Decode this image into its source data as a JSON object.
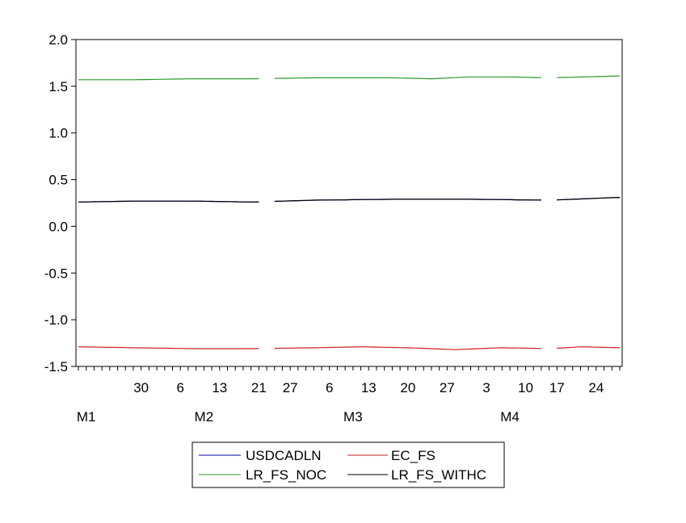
{
  "chart_data": {
    "type": "line",
    "title": "",
    "xlabel": "",
    "ylabel": "",
    "ylim": [
      -1.5,
      2.0
    ],
    "y_ticks": [
      "2.0",
      "1.5",
      "1.0",
      "0.5",
      "0.0",
      "-0.5",
      "-1.0",
      "-1.5"
    ],
    "y_tick_values": [
      2.0,
      1.5,
      1.0,
      0.5,
      0.0,
      -0.5,
      -1.0,
      -1.5
    ],
    "x_tick_labels": [
      "30",
      "6",
      "13",
      "21",
      "27",
      "6",
      "13",
      "20",
      "27",
      "3",
      "10",
      "17",
      "24"
    ],
    "x_tick_index": [
      8,
      13,
      18,
      23,
      27,
      32,
      37,
      42,
      47,
      52,
      57,
      61,
      66
    ],
    "x_months": [
      {
        "label": "M1",
        "index": 1
      },
      {
        "label": "M2",
        "index": 16
      },
      {
        "label": "M3",
        "index": 35
      },
      {
        "label": "M4",
        "index": 55
      }
    ],
    "n_points": 70,
    "grid": false,
    "legend_position": "bottom-center",
    "series": [
      {
        "name": "USDCADLN",
        "color": "#0000a0",
        "key_x": [
          0,
          7,
          15,
          22,
          30,
          40,
          50,
          60,
          69
        ],
        "key_y": [
          0.26,
          0.27,
          0.27,
          0.26,
          0.28,
          0.29,
          0.29,
          0.28,
          0.31
        ],
        "gaps": [
          24,
          60
        ]
      },
      {
        "name": "EC_FS",
        "color": "#d02020",
        "key_x": [
          0,
          7,
          15,
          22,
          30,
          36,
          42,
          48,
          54,
          60,
          64,
          69
        ],
        "key_y": [
          -1.29,
          -1.3,
          -1.31,
          -1.31,
          -1.3,
          -1.29,
          -1.3,
          -1.32,
          -1.3,
          -1.31,
          -1.29,
          -1.3
        ],
        "gaps": [
          24,
          60
        ]
      },
      {
        "name": "LR_FS_NOC",
        "color": "#2a9a2a",
        "key_x": [
          0,
          7,
          15,
          22,
          30,
          40,
          45,
          50,
          55,
          60,
          69
        ],
        "key_y": [
          1.57,
          1.57,
          1.58,
          1.58,
          1.59,
          1.59,
          1.58,
          1.6,
          1.6,
          1.59,
          1.61
        ],
        "gaps": [
          24,
          60
        ]
      },
      {
        "name": "LR_FS_WITHC",
        "color": "#000000",
        "key_x": [
          0,
          7,
          15,
          22,
          30,
          40,
          50,
          60,
          69
        ],
        "key_y": [
          0.26,
          0.27,
          0.27,
          0.26,
          0.28,
          0.29,
          0.29,
          0.28,
          0.31
        ],
        "gaps": [
          24,
          60
        ]
      }
    ]
  }
}
